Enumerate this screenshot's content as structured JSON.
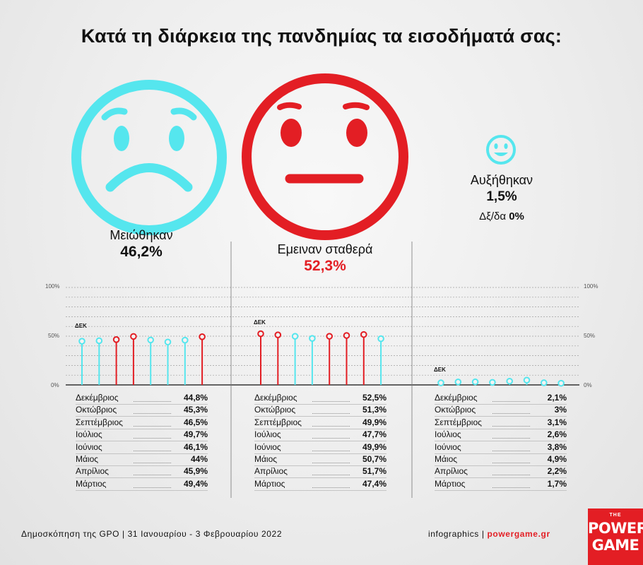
{
  "title": "Κατά τη διάρκεια της πανδημίας τα εισοδήματά σας:",
  "colors": {
    "cyan": "#55e6ee",
    "red": "#e31e24",
    "grid": "#a0a0a0"
  },
  "groups": [
    {
      "label": "Μειώθηκαν",
      "value": "46,2%",
      "icon": "sad-face-icon"
    },
    {
      "label": "Εμειναν σταθερά",
      "value": "52,3%",
      "icon": "neutral-face-icon"
    },
    {
      "label": "Αυξήθηκαν",
      "value": "1,5%",
      "icon": "happy-face-icon"
    }
  ],
  "dk": {
    "label": "Δξ/δα",
    "value": "0%"
  },
  "axis": {
    "top": "100%",
    "mid": "50%",
    "bottom": "0%"
  },
  "dek_label": "ΔΕΚ",
  "chart_data": [
    {
      "type": "lollipop",
      "name": "Μειώθηκαν",
      "categories": [
        "Δεκέμβριος",
        "Οκτώβριος",
        "Σεπτέμβριος",
        "Ιούλιος",
        "Ιούνιος",
        "Μάιος",
        "Απρίλιος",
        "Μάρτιος"
      ],
      "values": [
        44.8,
        45.3,
        46.5,
        49.7,
        46.1,
        44,
        45.9,
        49.4
      ],
      "labels": [
        "44,8%",
        "45,3%",
        "46,5%",
        "49,7%",
        "46,1%",
        "44%",
        "45,9%",
        "49,4%"
      ],
      "colors": [
        "cyan",
        "cyan",
        "red",
        "red",
        "cyan",
        "cyan",
        "cyan",
        "red"
      ],
      "ylim": [
        0,
        100
      ]
    },
    {
      "type": "lollipop",
      "name": "Εμειναν σταθερά",
      "categories": [
        "Δεκέμβριος",
        "Οκτώβριος",
        "Σεπτέμβριος",
        "Ιούλιος",
        "Ιούνιος",
        "Μάιος",
        "Απρίλιος",
        "Μάρτιος"
      ],
      "values": [
        52.5,
        51.3,
        49.9,
        47.7,
        49.9,
        50.7,
        51.7,
        47.4
      ],
      "labels": [
        "52,5%",
        "51,3%",
        "49,9%",
        "47,7%",
        "49,9%",
        "50,7%",
        "51,7%",
        "47,4%"
      ],
      "colors": [
        "red",
        "red",
        "cyan",
        "cyan",
        "red",
        "red",
        "red",
        "cyan"
      ],
      "ylim": [
        0,
        100
      ]
    },
    {
      "type": "lollipop",
      "name": "Αυξήθηκαν",
      "categories": [
        "Δεκέμβριος",
        "Οκτώβριος",
        "Σεπτέμβριος",
        "Ιούλιος",
        "Ιούνιος",
        "Μάιος",
        "Απρίλιος",
        "Μάρτιος"
      ],
      "values": [
        2.1,
        3,
        3.1,
        2.6,
        3.8,
        4.9,
        2.2,
        1.7
      ],
      "labels": [
        "2,1%",
        "3%",
        "3,1%",
        "2,6%",
        "3,8%",
        "4,9%",
        "2,2%",
        "1,7%"
      ],
      "colors": [
        "cyan",
        "cyan",
        "cyan",
        "cyan",
        "cyan",
        "cyan",
        "cyan",
        "cyan"
      ],
      "ylim": [
        0,
        100
      ]
    }
  ],
  "footer": {
    "source": "Δημοσκόπηση της GPO | 31 Ιανουαρίου - 3 Φεβρουαρίου 2022",
    "credit_prefix": "infographics | ",
    "credit_site": "powergame.gr"
  },
  "logo": {
    "the": "THE",
    "line1": "POWER",
    "line2": "GAME"
  }
}
